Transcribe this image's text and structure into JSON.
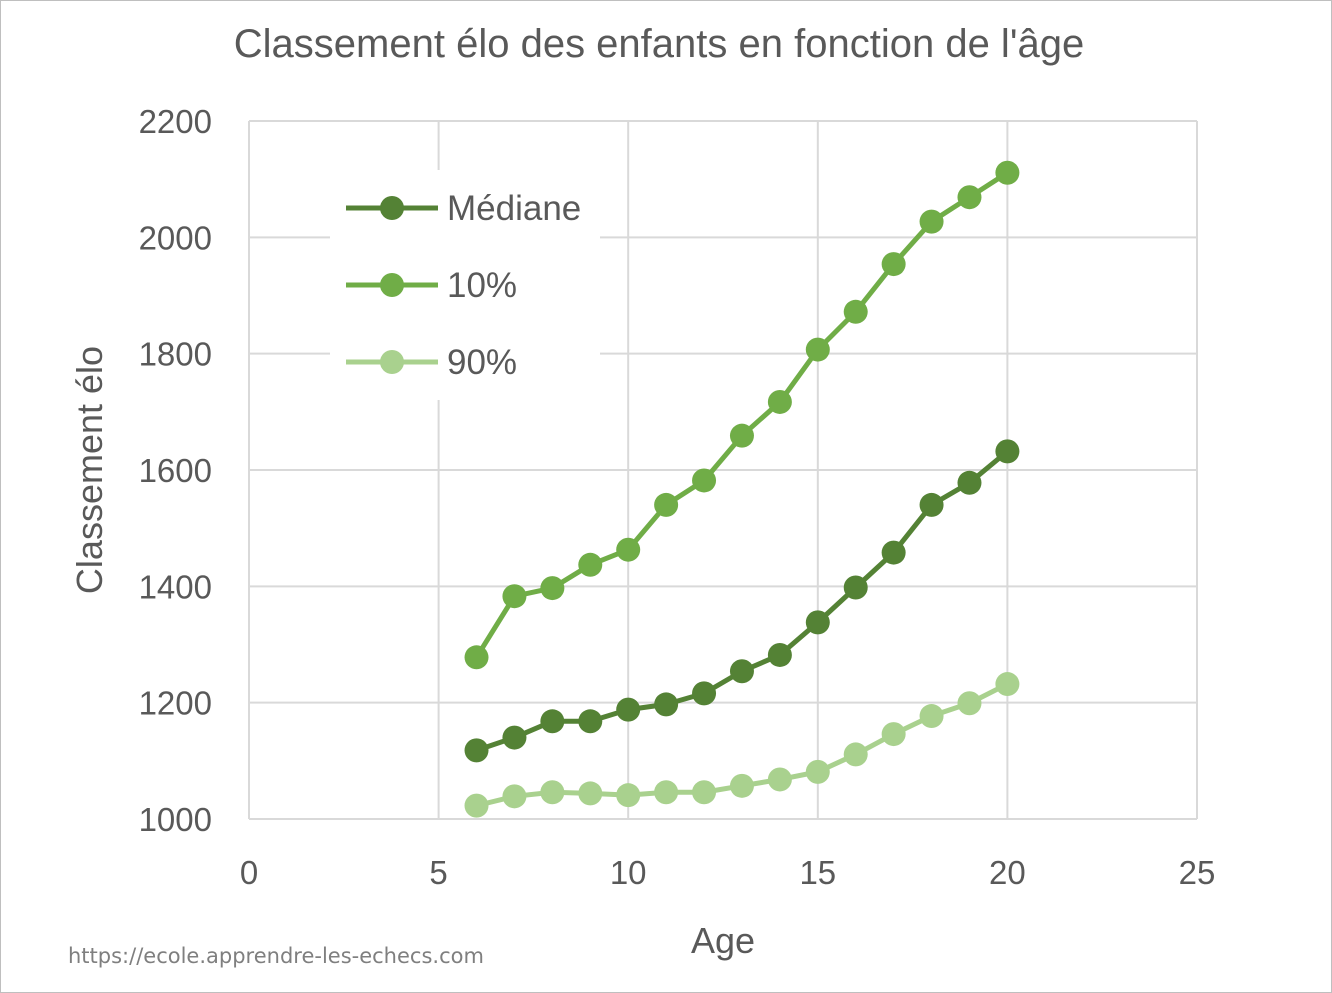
{
  "chart_data": {
    "type": "line",
    "title": "Classement élo des enfants en fonction de l'âge",
    "xlabel": "Age",
    "ylabel": "Classement élo",
    "xlim": [
      0,
      25
    ],
    "ylim": [
      1000,
      2200
    ],
    "xticks": [
      0,
      5,
      10,
      15,
      20,
      25
    ],
    "yticks": [
      1000,
      1200,
      1400,
      1600,
      1800,
      2000,
      2200
    ],
    "grid": true,
    "legend_position": "top-left",
    "x": [
      6,
      7,
      8,
      9,
      10,
      11,
      12,
      13,
      14,
      15,
      16,
      17,
      18,
      19,
      20
    ],
    "series": [
      {
        "name": "Médiane",
        "color": "#548235",
        "values": [
          1118,
          1140,
          1168,
          1168,
          1188,
          1197,
          1216,
          1254,
          1282,
          1338,
          1398,
          1458,
          1540,
          1578,
          1632
        ]
      },
      {
        "name": "10%",
        "color": "#70ad47",
        "values": [
          1278,
          1383,
          1397,
          1437,
          1463,
          1540,
          1582,
          1659,
          1717,
          1807,
          1872,
          1954,
          2027,
          2069,
          2111
        ]
      },
      {
        "name": "90%",
        "color": "#a9d18e",
        "values": [
          1023,
          1039,
          1046,
          1044,
          1041,
          1046,
          1046,
          1057,
          1068,
          1081,
          1111,
          1146,
          1177,
          1199,
          1232
        ]
      }
    ]
  },
  "watermark": "https://ecole.apprendre-les-echecs.com"
}
